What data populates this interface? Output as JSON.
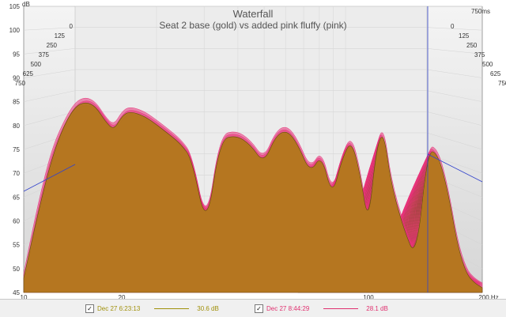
{
  "chart_data": {
    "type": "area",
    "title": "Waterfall",
    "subtitle": "Seat 2 base (gold) vs added pink fluffy (pink)",
    "y_unit": "dB",
    "x_unit": "Hz",
    "z_unit": "ms",
    "x_scale": "log",
    "xlim": [
      10,
      200
    ],
    "ylim": [
      45,
      105
    ],
    "x_ticks": [
      "10",
      "20",
      "100",
      "200 Hz"
    ],
    "y_ticks": [
      "45",
      "50",
      "55",
      "60",
      "65",
      "70",
      "75",
      "80",
      "85",
      "90",
      "95",
      "100",
      "105"
    ],
    "y_tick_unit_label": "dB",
    "left_time_ticks": [
      "0",
      "125",
      "250",
      "375",
      "500",
      "625",
      "750"
    ],
    "right_time_ticks": [
      "750ms",
      "0",
      "125",
      "250",
      "375",
      "500",
      "625",
      "750"
    ],
    "series": [
      {
        "name": "Seat 2 base (gold)",
        "color": "#8a7a0c",
        "fill": "#b3781d",
        "x": [
          10,
          11,
          12,
          13,
          14,
          15,
          16,
          17,
          18,
          19,
          20,
          22,
          24,
          26,
          28,
          30,
          33,
          36,
          40,
          44,
          48,
          52,
          56,
          60,
          65,
          70,
          75,
          80,
          85,
          90,
          95,
          100,
          105,
          110,
          120,
          130,
          140,
          150,
          160,
          170,
          180,
          190,
          200
        ],
        "values": [
          48,
          62,
          73,
          80,
          84,
          85,
          84,
          81,
          79,
          82,
          83,
          82,
          80,
          78,
          76,
          73,
          58,
          77,
          78,
          76,
          72,
          78,
          79,
          76,
          70,
          74,
          65,
          73,
          77,
          70,
          59,
          75,
          79,
          68,
          58,
          52,
          75,
          74,
          66,
          55,
          49,
          47,
          46
        ]
      },
      {
        "name": "added pink fluffy (pink)",
        "color": "#e8337a",
        "x": [
          10,
          11,
          12,
          13,
          14,
          15,
          16,
          17,
          18,
          19,
          20,
          22,
          24,
          26,
          28,
          30,
          33,
          36,
          40,
          44,
          48,
          52,
          56,
          60,
          65,
          70,
          75,
          80,
          85,
          90,
          95,
          100,
          105,
          110,
          120,
          130,
          140,
          150,
          160,
          170,
          180,
          190,
          200
        ],
        "values": [
          49,
          64,
          75,
          81,
          85,
          86,
          85,
          82,
          80,
          83,
          84,
          83,
          81,
          79,
          77,
          74,
          59,
          78,
          79,
          77,
          73,
          79,
          80,
          77,
          71,
          75,
          66,
          74,
          78,
          71,
          60,
          76,
          80,
          69,
          59,
          53,
          76,
          75,
          67,
          56,
          50,
          48,
          47
        ]
      }
    ],
    "grid": true,
    "legend_position": "bottom"
  },
  "legend": [
    {
      "checked": "✓",
      "label": "Dec 27 6:23:13",
      "value": "30.6 dB",
      "color": "#a0900a"
    },
    {
      "checked": "✓",
      "label": "Dec 27 8:44:29",
      "value": "28.1 dB",
      "color": "#e0306f"
    }
  ]
}
